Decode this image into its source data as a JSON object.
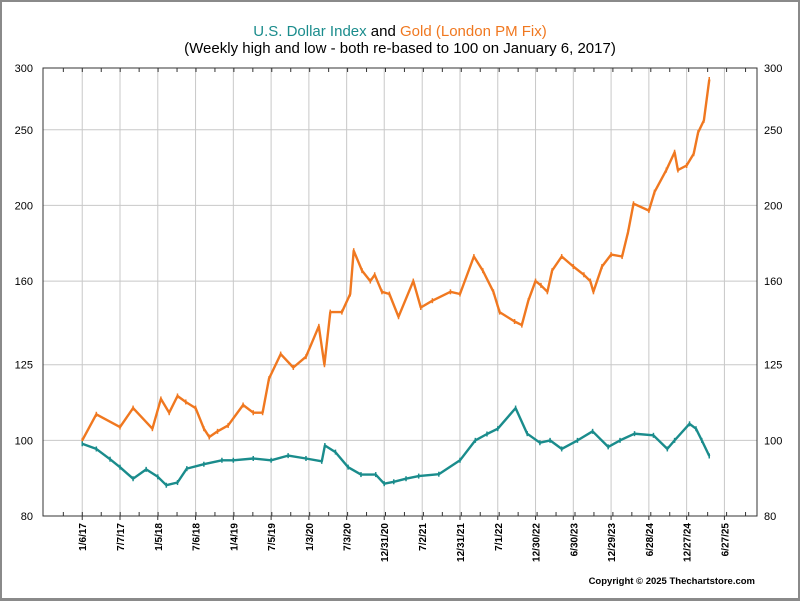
{
  "chart_data": {
    "type": "line",
    "title_parts": [
      {
        "text": "U.S. Dollar Index",
        "color": "#1a8c8c"
      },
      {
        "text": " and ",
        "color": "#000000"
      },
      {
        "text": "Gold (London PM Fix)",
        "color": "#f07820"
      }
    ],
    "subtitle": "(Weekly high and low - both re-based to 100 on January 6, 2017)",
    "y_scale": "log",
    "ylim": [
      80,
      300
    ],
    "y_ticks": [
      "80",
      "100",
      "125",
      "160",
      "200",
      "250",
      "300"
    ],
    "y_axis_sides": [
      "left",
      "right"
    ],
    "xlim": [
      "2016-07",
      "2025-12"
    ],
    "x_ticks": [
      {
        "date": "2017-01-06",
        "label": "1/6/17"
      },
      {
        "date": "2017-07-07",
        "label": "7/7/17"
      },
      {
        "date": "2018-01-05",
        "label": "1/5/18"
      },
      {
        "date": "2018-07-06",
        "label": "7/6/18"
      },
      {
        "date": "2019-01-04",
        "label": "1/4/19"
      },
      {
        "date": "2019-07-05",
        "label": "7/5/19"
      },
      {
        "date": "2020-01-03",
        "label": "1/3/20"
      },
      {
        "date": "2020-07-03",
        "label": "7/3/20"
      },
      {
        "date": "2020-12-31",
        "label": "12/31/20"
      },
      {
        "date": "2021-07-02",
        "label": "7/2/21"
      },
      {
        "date": "2021-12-31",
        "label": "12/31/21"
      },
      {
        "date": "2022-07-01",
        "label": "7/1/22"
      },
      {
        "date": "2022-12-30",
        "label": "12/30/22"
      },
      {
        "date": "2023-06-30",
        "label": "6/30/23"
      },
      {
        "date": "2023-12-29",
        "label": "12/29/23"
      },
      {
        "date": "2024-06-28",
        "label": "6/28/24"
      },
      {
        "date": "2024-12-27",
        "label": "12/27/24"
      },
      {
        "date": "2025-06-27",
        "label": "6/27/25"
      }
    ],
    "grid": true,
    "series": [
      {
        "name": "Gold (London PM Fix)",
        "color": "#f07820",
        "points": [
          [
            "2017-01-06",
            100
          ],
          [
            "2017-03-15",
            108
          ],
          [
            "2017-07-07",
            104
          ],
          [
            "2017-09-08",
            110
          ],
          [
            "2017-12-10",
            103.5
          ],
          [
            "2018-01-20",
            113
          ],
          [
            "2018-03-01",
            108.5
          ],
          [
            "2018-04-10",
            114
          ],
          [
            "2018-05-20",
            112
          ],
          [
            "2018-07-06",
            110
          ],
          [
            "2018-08-15",
            103.5
          ],
          [
            "2018-09-10",
            101
          ],
          [
            "2018-10-20",
            102.7
          ],
          [
            "2018-12-10",
            104.5
          ],
          [
            "2019-02-20",
            111
          ],
          [
            "2019-04-10",
            108.5
          ],
          [
            "2019-05-25",
            108.5
          ],
          [
            "2019-06-25",
            120
          ],
          [
            "2019-08-20",
            129
          ],
          [
            "2019-10-20",
            124
          ],
          [
            "2019-12-20",
            128
          ],
          [
            "2020-02-20",
            140
          ],
          [
            "2020-03-18",
            125
          ],
          [
            "2020-04-15",
            146
          ],
          [
            "2020-06-10",
            146
          ],
          [
            "2020-07-20",
            154
          ],
          [
            "2020-08-06",
            175
          ],
          [
            "2020-09-15",
            165
          ],
          [
            "2020-10-25",
            160
          ],
          [
            "2020-11-15",
            163
          ],
          [
            "2020-12-20",
            155
          ],
          [
            "2021-01-25",
            154
          ],
          [
            "2021-03-10",
            144
          ],
          [
            "2021-05-20",
            160
          ],
          [
            "2021-06-25",
            148
          ],
          [
            "2021-08-20",
            151
          ],
          [
            "2021-11-15",
            155
          ],
          [
            "2021-12-31",
            154
          ],
          [
            "2022-03-08",
            172
          ],
          [
            "2022-04-20",
            165
          ],
          [
            "2022-06-10",
            155
          ],
          [
            "2022-07-10",
            146
          ],
          [
            "2022-09-20",
            142
          ],
          [
            "2022-10-25",
            140.5
          ],
          [
            "2022-11-25",
            151
          ],
          [
            "2022-12-30",
            160
          ],
          [
            "2023-01-25",
            158
          ],
          [
            "2023-02-25",
            155
          ],
          [
            "2023-03-20",
            165
          ],
          [
            "2023-05-05",
            172
          ],
          [
            "2023-06-30",
            167
          ],
          [
            "2023-08-20",
            163
          ],
          [
            "2023-09-20",
            160
          ],
          [
            "2023-10-05",
            155
          ],
          [
            "2023-11-15",
            167
          ],
          [
            "2023-12-29",
            173
          ],
          [
            "2024-02-20",
            172
          ],
          [
            "2024-03-20",
            185
          ],
          [
            "2024-04-15",
            201
          ],
          [
            "2024-06-28",
            197
          ],
          [
            "2024-07-25",
            208
          ],
          [
            "2024-09-20",
            222
          ],
          [
            "2024-10-30",
            234
          ],
          [
            "2024-11-15",
            222
          ],
          [
            "2024-12-27",
            225
          ],
          [
            "2025-01-30",
            233
          ],
          [
            "2025-02-20",
            248
          ],
          [
            "2025-03-20",
            257
          ],
          [
            "2025-04-15",
            290
          ]
        ]
      },
      {
        "name": "U.S. Dollar Index",
        "color": "#1a8c8c",
        "points": [
          [
            "2017-01-06",
            99
          ],
          [
            "2017-03-15",
            97.5
          ],
          [
            "2017-05-20",
            94.6
          ],
          [
            "2017-07-07",
            92.4
          ],
          [
            "2017-09-08",
            89.3
          ],
          [
            "2017-11-10",
            91.8
          ],
          [
            "2018-01-05",
            89.8
          ],
          [
            "2018-02-15",
            87.6
          ],
          [
            "2018-04-10",
            88.3
          ],
          [
            "2018-05-25",
            92
          ],
          [
            "2018-08-15",
            93.2
          ],
          [
            "2018-11-10",
            94.3
          ],
          [
            "2019-01-04",
            94.3
          ],
          [
            "2019-04-10",
            94.8
          ],
          [
            "2019-07-05",
            94.3
          ],
          [
            "2019-09-25",
            95.6
          ],
          [
            "2019-12-20",
            94.8
          ],
          [
            "2020-03-05",
            94
          ],
          [
            "2020-03-20",
            98.5
          ],
          [
            "2020-05-10",
            96.6
          ],
          [
            "2020-07-10",
            92.4
          ],
          [
            "2020-09-10",
            90.4
          ],
          [
            "2020-11-20",
            90.4
          ],
          [
            "2020-12-31",
            88
          ],
          [
            "2021-02-15",
            88.5
          ],
          [
            "2021-04-15",
            89.3
          ],
          [
            "2021-06-15",
            90
          ],
          [
            "2021-09-20",
            90.5
          ],
          [
            "2021-12-31",
            94.3
          ],
          [
            "2022-03-15",
            100
          ],
          [
            "2022-05-10",
            101.9
          ],
          [
            "2022-07-01",
            103.5
          ],
          [
            "2022-09-25",
            110
          ],
          [
            "2022-11-20",
            102
          ],
          [
            "2023-01-20",
            99.3
          ],
          [
            "2023-03-10",
            100
          ],
          [
            "2023-05-05",
            97.5
          ],
          [
            "2023-07-20",
            100
          ],
          [
            "2023-10-01",
            102.7
          ],
          [
            "2023-12-15",
            98.1
          ],
          [
            "2024-02-10",
            100
          ],
          [
            "2024-04-20",
            102
          ],
          [
            "2024-07-20",
            101.5
          ],
          [
            "2024-09-25",
            97.5
          ],
          [
            "2024-10-30",
            100
          ],
          [
            "2025-01-10",
            105
          ],
          [
            "2025-02-10",
            103.5
          ],
          [
            "2025-03-10",
            100
          ],
          [
            "2025-04-15",
            95.5
          ]
        ]
      }
    ],
    "copyright": "Copyright © 2025 Thechartstore.com"
  }
}
